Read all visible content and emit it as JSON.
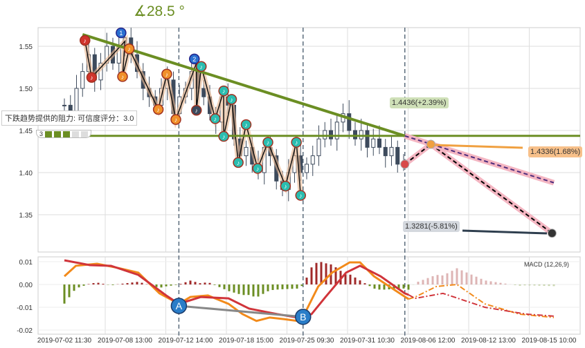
{
  "angle_label": "∡28.5 °",
  "resistance_tip": "下跌趋势提供的阻力: 可信度评分：3.0",
  "rating": {
    "score": "3",
    "filled": 3,
    "total": 5
  },
  "labels": {
    "resistance": "1.4436(+2.39%)",
    "target_mid": "1.4336(1.68%)",
    "target_low": "1.3281(-5.81%)",
    "macd": "MACD (12,26,9)",
    "marker_a": "A",
    "marker_b": "B"
  },
  "colors": {
    "trend": "#6b8e23",
    "candle": "#3d4a5c",
    "dif": "#f28a1a",
    "dea": "#d0343a",
    "hist_pos": "#a02a2a",
    "hist_neg": "#6b8e23"
  },
  "chart_data": [
    {
      "type": "candlestick",
      "ylabel": "",
      "yticks": [
        "1.55",
        "1.50",
        "1.45",
        "1.40",
        "1.35"
      ],
      "ytick_values": [
        1.55,
        1.5,
        1.45,
        1.4,
        1.35
      ],
      "ylim": [
        1.318,
        1.572
      ],
      "xticks": [
        "2019-07-02 11:30",
        "2019-07-08 13:00",
        "2019-07-12 14:00",
        "2019-07-18 15:00",
        "2019-07-25 09:30",
        "2019-07-31 10:30",
        "2019-08-06 12:00",
        "2019-08-12 13:00",
        "2019-08-15 10:00"
      ],
      "xtick_index": [
        0,
        10,
        20,
        30,
        40,
        50,
        60,
        70,
        80
      ],
      "closes": [
        1.48,
        1.47,
        1.5,
        1.52,
        1.54,
        1.51,
        1.53,
        1.55,
        1.53,
        1.55,
        1.56,
        1.54,
        1.52,
        1.5,
        1.49,
        1.48,
        1.5,
        1.51,
        1.47,
        1.49,
        1.5,
        1.52,
        1.5,
        1.49,
        1.47,
        1.46,
        1.49,
        1.48,
        1.44,
        1.42,
        1.43,
        1.41,
        1.4,
        1.43,
        1.42,
        1.39,
        1.38,
        1.4,
        1.42,
        1.4,
        1.41,
        1.42,
        1.44,
        1.45,
        1.44,
        1.46,
        1.47,
        1.45,
        1.44,
        1.45,
        1.43,
        1.44,
        1.43,
        1.42,
        1.43,
        1.41,
        1.41
      ],
      "trendline": [
        [
          3,
          1.564
        ],
        [
          56.2,
          1.4436
        ]
      ],
      "resistance_level": 1.4436,
      "wave_points": [
        [
          3.4,
          1.557,
          "red"
        ],
        [
          4.5,
          1.513,
          "red"
        ],
        [
          9.7,
          1.561,
          "blue",
          "1"
        ],
        [
          9.6,
          1.514,
          "orange"
        ],
        [
          10.7,
          1.547,
          "orange"
        ],
        [
          15.5,
          1.475,
          "orange"
        ],
        [
          16.9,
          1.517,
          "orange"
        ],
        [
          18.4,
          1.463,
          "orange"
        ],
        [
          21.8,
          1.53,
          "blue",
          "2"
        ],
        [
          21.8,
          1.474,
          "dark"
        ],
        [
          22.6,
          1.526,
          "teal"
        ],
        [
          24.9,
          1.464,
          "teal"
        ],
        [
          26.3,
          1.497,
          "teal"
        ],
        [
          26.3,
          1.443,
          "teal"
        ],
        [
          27.6,
          1.487,
          "teal"
        ],
        [
          28.7,
          1.412,
          "teal"
        ],
        [
          30,
          1.457,
          "teal"
        ],
        [
          31.9,
          1.405,
          "teal"
        ],
        [
          33.6,
          1.436,
          "teal"
        ],
        [
          36.5,
          1.384,
          "teal"
        ],
        [
          38.3,
          1.436,
          "teal"
        ],
        [
          39,
          1.373,
          "teal"
        ]
      ],
      "zigzag": [
        [
          3.4,
          1.557
        ],
        [
          4.5,
          1.513
        ],
        [
          10,
          1.556
        ],
        [
          9.6,
          1.514
        ],
        [
          10.7,
          1.547
        ],
        [
          15.5,
          1.475
        ],
        [
          16.9,
          1.517
        ],
        [
          18.4,
          1.463
        ],
        [
          21.8,
          1.53
        ],
        [
          21.8,
          1.474
        ],
        [
          22.6,
          1.526
        ],
        [
          24.9,
          1.464
        ],
        [
          26.3,
          1.497
        ],
        [
          26.3,
          1.443
        ],
        [
          27.6,
          1.487
        ],
        [
          28.7,
          1.412
        ],
        [
          30,
          1.457
        ],
        [
          31.9,
          1.405
        ],
        [
          33.6,
          1.436
        ],
        [
          36.5,
          1.384
        ],
        [
          38.3,
          1.436
        ],
        [
          39,
          1.373
        ]
      ],
      "projection": {
        "current": [
          56.2,
          1.41
        ],
        "mid": [
          60.5,
          1.4336
        ],
        "low": [
          80.5,
          1.3281
        ],
        "upper_end": [
          80.8,
          1.388
        ]
      }
    },
    {
      "type": "line",
      "title": "MACD (12,26,9)",
      "yticks": [
        "0.01",
        "0.00",
        "-0.01",
        "-0.02"
      ],
      "ytick_values": [
        0.01,
        0,
        -0.01,
        -0.02
      ],
      "ylim": [
        -0.0205,
        0.0125
      ],
      "series": [
        {
          "name": "DIF",
          "values": [
            [
              0,
              0.0036
            ],
            [
              1.9,
              0.0082
            ],
            [
              5.4,
              0.0091
            ],
            [
              8.8,
              0.0073
            ],
            [
              12.2,
              0.0052
            ],
            [
              15.7,
              -0.0039
            ],
            [
              18.9,
              -0.0085
            ],
            [
              20.8,
              -0.0055
            ],
            [
              23.7,
              -0.0048
            ],
            [
              27.1,
              -0.0085
            ],
            [
              29.4,
              -0.013
            ],
            [
              31.7,
              -0.016
            ],
            [
              33.9,
              -0.0145
            ],
            [
              36.2,
              -0.0152
            ],
            [
              38.5,
              -0.016
            ],
            [
              39.4,
              -0.0142
            ],
            [
              41.9,
              -0.0009
            ],
            [
              44.2,
              0.0052
            ],
            [
              47.1,
              0.0097
            ],
            [
              48.8,
              0.0097
            ],
            [
              51.1,
              0.0036
            ],
            [
              54.5,
              -0.0024
            ],
            [
              56.8,
              -0.0064
            ]
          ],
          "projection": [
            [
              56.8,
              -0.0064
            ],
            [
              57.9,
              -0.0055
            ],
            [
              61.4,
              -0.0009
            ],
            [
              64.8,
              0
            ],
            [
              69.4,
              -0.0085
            ],
            [
              75.1,
              -0.013
            ],
            [
              80.8,
              -0.0145
            ]
          ]
        },
        {
          "name": "DEA",
          "values": [
            [
              0,
              0.0106
            ],
            [
              4.2,
              0.0085
            ],
            [
              7.7,
              0.0082
            ],
            [
              12.2,
              0.0042
            ],
            [
              16.8,
              -0.0048
            ],
            [
              18.9,
              -0.0085
            ],
            [
              22.5,
              -0.0055
            ],
            [
              27.1,
              -0.0061
            ],
            [
              30.5,
              -0.0106
            ],
            [
              35.1,
              -0.013
            ],
            [
              38.5,
              -0.0145
            ],
            [
              40.8,
              -0.013
            ],
            [
              43.1,
              -0.0055
            ],
            [
              46.5,
              0.0052
            ],
            [
              48.8,
              0.0082
            ],
            [
              52.2,
              0.0036
            ],
            [
              56.2,
              -0.0039
            ],
            [
              56.8,
              -0.0045
            ]
          ],
          "projection": [
            [
              56.8,
              -0.0045
            ],
            [
              57.9,
              -0.0061
            ],
            [
              62.5,
              -0.0039
            ],
            [
              69.4,
              -0.01
            ],
            [
              76.2,
              -0.013
            ],
            [
              80.8,
              -0.0139
            ]
          ]
        }
      ],
      "divergence": [
        [
          18.9,
          -0.0094,
          "A"
        ],
        [
          39.4,
          -0.0142,
          "B"
        ]
      ]
    }
  ]
}
